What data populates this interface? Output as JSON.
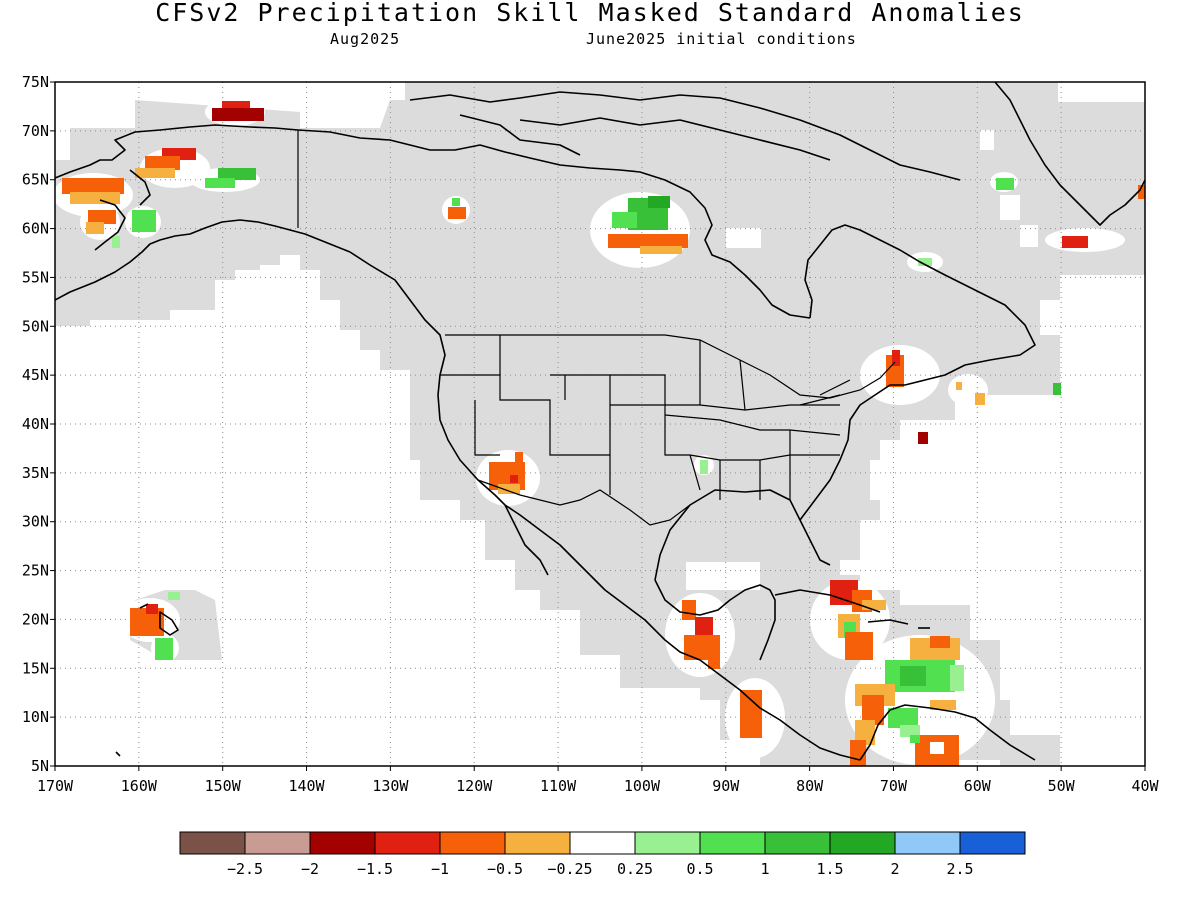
{
  "title": "CFSv2 Precipitation Skill Masked Standard Anomalies",
  "subtitle_left": "Aug2025",
  "subtitle_right": "June2025 initial conditions",
  "map": {
    "lon_labels": [
      "170W",
      "160W",
      "150W",
      "140W",
      "130W",
      "120W",
      "110W",
      "100W",
      "90W",
      "80W",
      "70W",
      "60W",
      "50W",
      "40W"
    ],
    "lat_labels": [
      "75N",
      "70N",
      "65N",
      "60N",
      "55N",
      "50N",
      "45N",
      "40N",
      "35N",
      "30N",
      "25N",
      "20N",
      "15N",
      "10N",
      "5N"
    ],
    "grid": "dotted",
    "land_mask_color": "#dcdcdc",
    "anomaly_patches": [
      {
        "region": "northern Alaska coast",
        "lon": -148,
        "lat": 71.5,
        "value": -1.7
      },
      {
        "region": "western Alaska",
        "lon": -154,
        "lat": 67,
        "value": -1.2
      },
      {
        "region": "Seward Peninsula",
        "lon": -165,
        "lat": 64,
        "value": -0.8
      },
      {
        "region": "Yukon delta",
        "lon": -162,
        "lat": 61,
        "value": -0.6
      },
      {
        "region": "interior Alaska",
        "lon": -149,
        "lat": 65,
        "value": 1.2
      },
      {
        "region": "Bristol Bay",
        "lon": -158,
        "lat": 60.5,
        "value": 0.7
      },
      {
        "region": "Great Slave Lake",
        "lon": -121,
        "lat": 61,
        "value": -1.2
      },
      {
        "region": "Nunavut interior",
        "lon": -100,
        "lat": 61,
        "value": 1.2
      },
      {
        "region": "northern Manitoba",
        "lon": -99,
        "lat": 58,
        "value": -1.0
      },
      {
        "region": "Greenland south",
        "lon": -51,
        "lat": 58.5,
        "value": -1.6
      },
      {
        "region": "Baffin south",
        "lon": -63,
        "lat": 64.5,
        "value": 0.6
      },
      {
        "region": "Labrador",
        "lon": -68,
        "lat": 56,
        "value": 0.4
      },
      {
        "region": "Maine",
        "lon": -69.5,
        "lat": 46,
        "value": -1.0
      },
      {
        "region": "Nova Scotia offshore",
        "lon": -64,
        "lat": 43,
        "value": -0.4
      },
      {
        "region": "Gulf Stream",
        "lon": -67,
        "lat": 38.5,
        "value": -1.6
      },
      {
        "region": "Grand Banks",
        "lon": -50,
        "lat": 43.5,
        "value": 0.8
      },
      {
        "region": "Arizona / S. Nevada",
        "lon": -115,
        "lat": 35,
        "value": -1.0
      },
      {
        "region": "Texas panhandle",
        "lon": -92,
        "lat": 35,
        "value": 0.4
      },
      {
        "region": "Hawaii",
        "lon": -157,
        "lat": 20,
        "value": -1.0
      },
      {
        "region": "Hawaii east",
        "lon": -155.5,
        "lat": 17,
        "value": 0.8
      },
      {
        "region": "southern Mexico",
        "lon": -94,
        "lat": 18,
        "value": -1.1
      },
      {
        "region": "Pacific off Central America",
        "lon": -88,
        "lat": 9,
        "value": -1.0
      },
      {
        "region": "Cuba / Bahamas",
        "lon": -75,
        "lat": 21.5,
        "value": -1.3
      },
      {
        "region": "Jamaica area",
        "lon": -76,
        "lat": 17,
        "value": -0.9
      },
      {
        "region": "Caribbean central",
        "lon": -68,
        "lat": 14,
        "value": 1.2
      },
      {
        "region": "Lesser Antilles",
        "lon": -63,
        "lat": 17,
        "value": -0.5
      },
      {
        "region": "Venezuela coast",
        "lon": -65,
        "lat": 6.5,
        "value": -0.9
      },
      {
        "region": "Colombia",
        "lon": -74,
        "lat": 7.5,
        "value": -0.8
      },
      {
        "region": "Venezuela west",
        "lon": -70,
        "lat": 9,
        "value": 0.7
      }
    ]
  },
  "legend": {
    "labels": [
      "−2.5",
      "−2",
      "−1.5",
      "−1",
      "−0.5",
      "−0.25",
      "0.25",
      "0.5",
      "1",
      "1.5",
      "2",
      "2.5"
    ],
    "colors": [
      "#7b5248",
      "#c89c92",
      "#a30000",
      "#e02010",
      "#f56008",
      "#f6b040",
      "#ffffff",
      "#98f090",
      "#50e050",
      "#38c038",
      "#22a822",
      "#90c8f8",
      "#1860d8"
    ]
  }
}
